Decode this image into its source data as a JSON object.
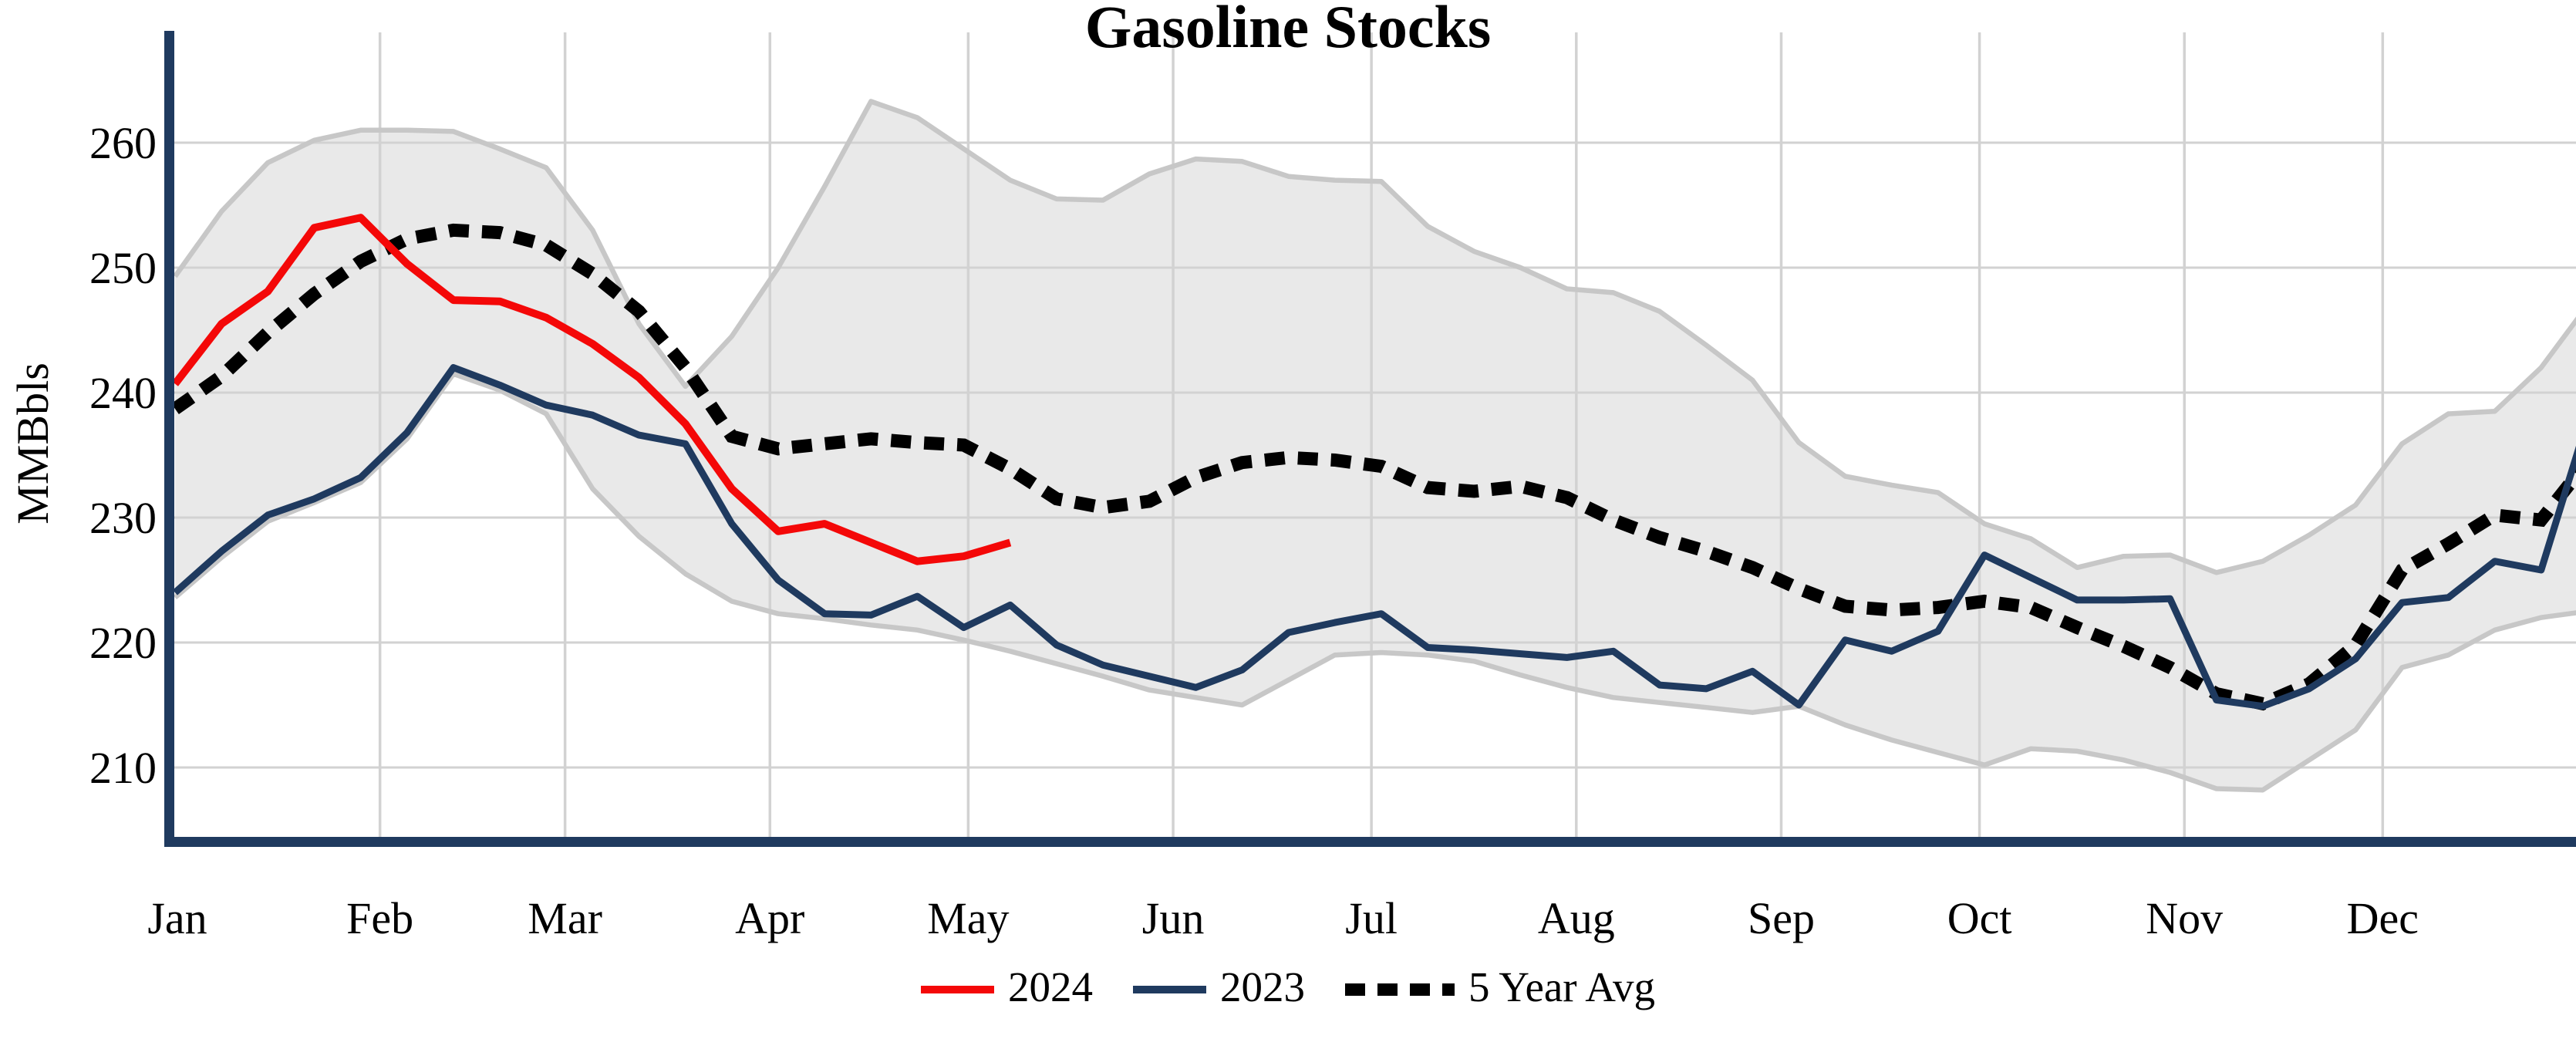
{
  "title": "Gasoline Stocks",
  "y_axis": {
    "label": "MMBbls",
    "ticks": [
      260,
      250,
      240,
      230,
      220,
      210
    ]
  },
  "x_axis": {
    "months": [
      "Jan",
      "Feb",
      "Mar",
      "Apr",
      "May",
      "Jun",
      "Jul",
      "Aug",
      "Sep",
      "Oct",
      "Nov",
      "Dec"
    ],
    "month_day_of_year": [
      0,
      31,
      59,
      90,
      120,
      151,
      181,
      212,
      243,
      273,
      304,
      334
    ],
    "days_in_year": 365
  },
  "legend": [
    {
      "label": "2024",
      "style": "solid",
      "color": "#f40808"
    },
    {
      "label": "2023",
      "style": "solid",
      "color": "#1f3a5f"
    },
    {
      "label": "5 Year Avg",
      "style": "dotted",
      "color": "#000000"
    }
  ],
  "colors": {
    "red": "#f40808",
    "navy": "#1f3a5f",
    "band_fill": "#e9e9e9",
    "band_edge": "#c7c7c7",
    "grid": "#d2d2d2",
    "axis": "#1f3a5f",
    "text": "#000000",
    "background": "#ffffff"
  },
  "chart_data": {
    "type": "line",
    "title": "Gasoline Stocks",
    "xlabel": "",
    "ylabel": "MMBbls",
    "ylim": [
      204,
      268.5
    ],
    "yticks": [
      210,
      220,
      230,
      240,
      250,
      260
    ],
    "grid": true,
    "legend_position": "bottom-center",
    "x_unit": "weekly (52 weeks, Jan-Dec)",
    "series": [
      {
        "name": "2024",
        "color": "#f40808",
        "dash": "solid",
        "width": 10,
        "values": [
          240.7,
          245.5,
          248.1,
          253.2,
          254.0,
          250.3,
          247.4,
          247.3,
          246.0,
          243.9,
          241.2,
          237.5,
          232.3,
          228.9,
          229.5,
          228.0,
          226.5,
          226.9,
          228.0
        ]
      },
      {
        "name": "2023",
        "color": "#1f3a5f",
        "dash": "solid",
        "width": 9,
        "values": [
          224.0,
          227.3,
          230.2,
          231.5,
          233.2,
          236.8,
          242.0,
          240.6,
          239.0,
          238.2,
          236.6,
          235.9,
          229.5,
          225.0,
          222.3,
          222.2,
          223.7,
          221.2,
          223.0,
          219.8,
          218.2,
          217.3,
          216.4,
          217.8,
          220.8,
          221.6,
          222.3,
          219.6,
          219.4,
          219.1,
          218.8,
          219.3,
          216.6,
          216.3,
          217.7,
          215.0,
          220.2,
          219.3,
          220.9,
          227.0,
          225.2,
          223.4,
          223.4,
          223.5,
          215.4,
          214.9,
          216.3,
          218.7,
          223.2,
          223.6,
          226.5,
          225.8,
          237.8
        ]
      },
      {
        "name": "5 Year Avg",
        "color": "#000000",
        "dash": "dotted",
        "width": 17,
        "values": [
          238.7,
          241.3,
          244.8,
          247.9,
          250.5,
          252.3,
          253.0,
          252.8,
          251.8,
          249.5,
          246.5,
          242.0,
          236.5,
          235.5,
          235.9,
          236.3,
          236.0,
          235.8,
          233.9,
          231.5,
          230.8,
          231.3,
          233.2,
          234.4,
          234.8,
          234.6,
          234.1,
          232.4,
          232.1,
          232.5,
          231.6,
          229.8,
          228.4,
          227.3,
          226.0,
          224.3,
          222.9,
          222.6,
          222.8,
          223.3,
          222.8,
          221.2,
          219.7,
          218.0,
          215.9,
          215.1,
          216.7,
          219.8,
          225.8,
          227.9,
          230.2,
          229.8,
          234.5
        ]
      }
    ],
    "band": {
      "name": "5-year min-max range",
      "fill": "#e9e9e9",
      "edge": "#c7c7c7",
      "upper": [
        249.3,
        254.5,
        258.4,
        260.2,
        261.0,
        261.0,
        260.9,
        259.5,
        258.0,
        253.0,
        245.5,
        240.5,
        244.5,
        250.0,
        256.5,
        263.3,
        262.0,
        259.5,
        257.0,
        255.5,
        255.4,
        257.5,
        258.7,
        258.5,
        257.3,
        257.0,
        256.9,
        253.3,
        251.3,
        250.0,
        248.3,
        248.0,
        246.5,
        243.8,
        241.0,
        236.0,
        233.3,
        232.6,
        232.0,
        229.5,
        228.3,
        226.0,
        226.9,
        227.0,
        225.6,
        226.5,
        228.6,
        231.0,
        235.9,
        238.3,
        238.5,
        242.0,
        247.0
      ],
      "lower": [
        223.6,
        226.8,
        229.7,
        231.2,
        232.8,
        236.3,
        241.5,
        240.2,
        238.3,
        232.3,
        228.5,
        225.5,
        223.3,
        222.3,
        221.9,
        221.4,
        221.0,
        220.2,
        219.3,
        218.3,
        217.3,
        216.2,
        215.6,
        215.0,
        217.0,
        219.0,
        219.2,
        219.0,
        218.5,
        217.4,
        216.4,
        215.6,
        215.2,
        214.8,
        214.4,
        214.9,
        213.4,
        212.2,
        211.2,
        210.2,
        211.5,
        211.3,
        210.6,
        209.6,
        208.3,
        208.2,
        210.6,
        213.0,
        218.0,
        219.0,
        221.0,
        222.0,
        222.5
      ]
    }
  }
}
